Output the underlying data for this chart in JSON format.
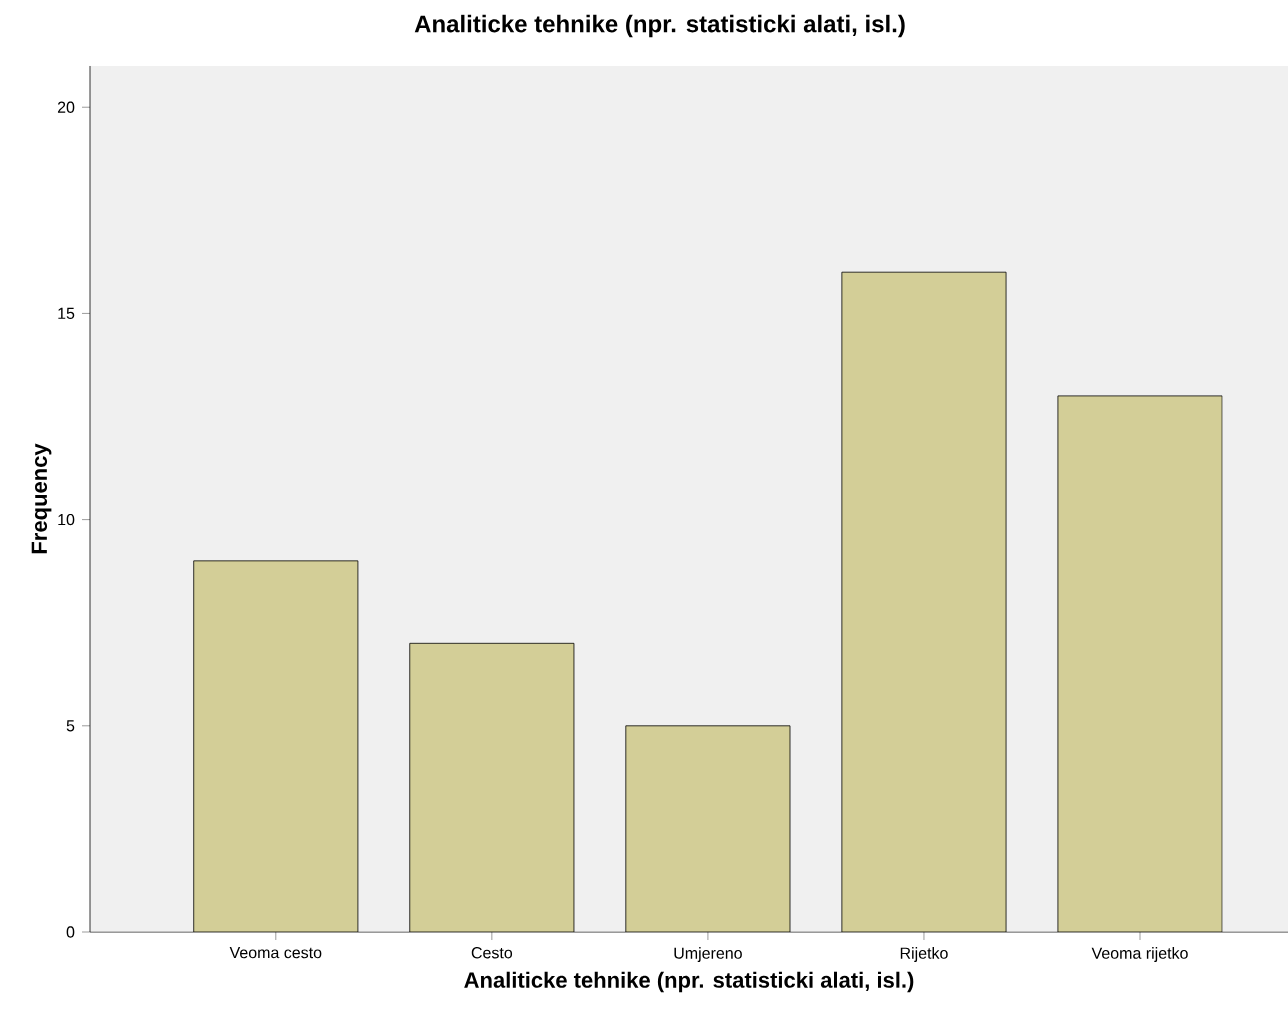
{
  "chart_data": {
    "type": "bar",
    "title": "Analiticke tehnike (npr. statisticki alati, isl.)",
    "xlabel": "Analiticke tehnike (npr. statisticki alati, isl.)",
    "ylabel": "Frequency",
    "categories": [
      "Veoma cesto",
      "Cesto",
      "Umjereno",
      "Rijetko",
      "Veoma rijetko"
    ],
    "values": [
      9,
      7,
      5,
      16,
      13
    ],
    "color": "#d3ce97",
    "ylim": [
      0,
      21
    ],
    "yticks": [
      0,
      5,
      10,
      15,
      20
    ]
  }
}
